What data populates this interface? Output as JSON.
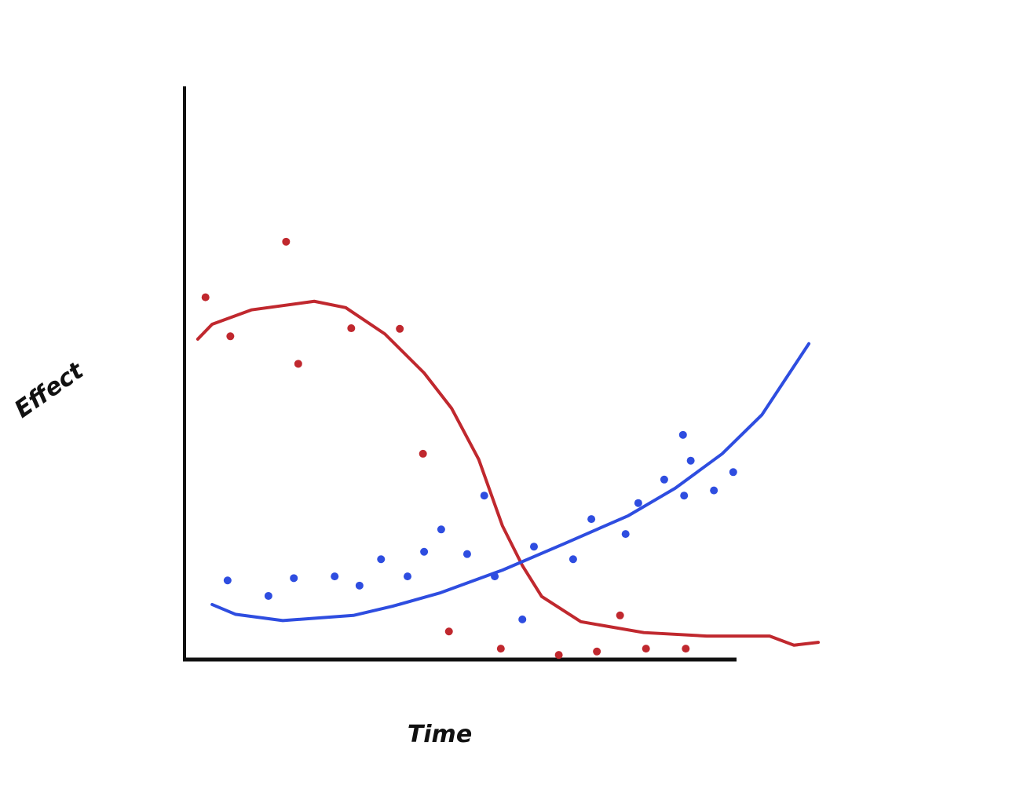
{
  "chart_data": {
    "type": "scatter",
    "x_label": "Time",
    "y_label": "Effect",
    "xlim": [
      0,
      115
    ],
    "ylim": [
      0,
      100
    ],
    "series": [
      {
        "color": "#c0282e",
        "x": [
          3.8,
          8.3,
          18.4,
          20.6,
          30.2,
          39,
          43.2,
          47.9,
          57.3,
          67.8,
          74.7,
          78.9,
          83.6,
          90.8
        ],
        "values": [
          63.2,
          56.4,
          72.9,
          51.6,
          57.8,
          57.7,
          35.9,
          4.9,
          1.9,
          0.8,
          1.4,
          7.7,
          1.9,
          1.9
        ]
      },
      {
        "color": "#2e4de0",
        "x": [
          7.8,
          15.2,
          19.8,
          27.2,
          31.7,
          35.6,
          40.4,
          43.4,
          46.5,
          51.2,
          54.3,
          56.2,
          61.2,
          63.3,
          70.4,
          73.7,
          79.9,
          82.2,
          86.9,
          90.3,
          90.5,
          91.7,
          95.9,
          99.4
        ],
        "values": [
          13.8,
          11.1,
          14.2,
          14.5,
          12.9,
          17.5,
          14.5,
          18.8,
          22.7,
          18.4,
          28.6,
          14.5,
          7,
          19.7,
          17.5,
          24.5,
          21.9,
          27.3,
          31.4,
          39.2,
          28.6,
          34.7,
          29.5,
          32.7
        ]
      }
    ],
    "lines": [
      {
        "color": "#c0282e",
        "x": [
          2.4,
          5,
          12.1,
          23.5,
          29.2,
          36.3,
          43.4,
          48.4,
          53.3,
          57.6,
          61.2,
          64.7,
          71.8,
          83.2,
          94.6,
          106,
          110.4,
          114.8
        ],
        "values": [
          55.9,
          58.5,
          61,
          62.5,
          61.4,
          56.8,
          50,
          43.8,
          34.9,
          23.3,
          16.4,
          11,
          6.6,
          4.7,
          4.1,
          4.1,
          2.5,
          3
        ]
      },
      {
        "color": "#2e4de0",
        "x": [
          5,
          9.2,
          17.8,
          30.6,
          37.7,
          46.2,
          57.6,
          69,
          80.4,
          88.9,
          97.4,
          104.6,
          113.1
        ],
        "values": [
          9.6,
          7.9,
          6.8,
          7.7,
          9.3,
          11.6,
          15.6,
          20.3,
          25.1,
          29.9,
          35.9,
          42.7,
          55.1
        ]
      }
    ]
  }
}
